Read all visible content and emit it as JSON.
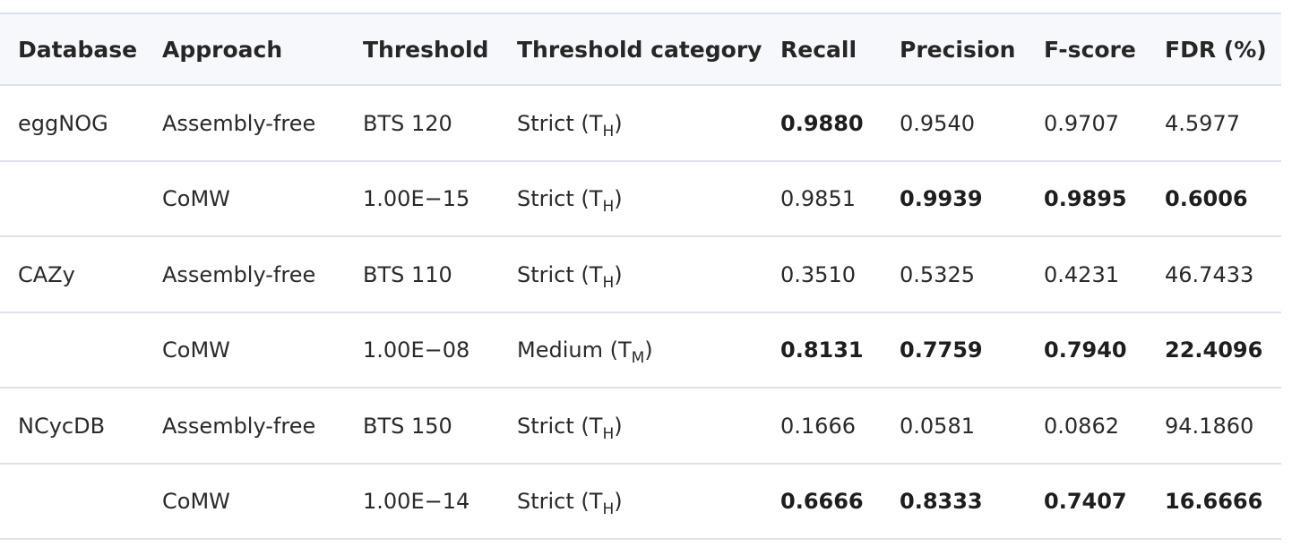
{
  "table": {
    "headers": [
      "Database",
      "Approach",
      "Threshold",
      "Threshold category",
      "Recall",
      "Precision",
      "F-score",
      "FDR (%)"
    ],
    "rows": [
      {
        "database": "eggNOG",
        "approach": "Assembly-free",
        "threshold": "BTS 120",
        "category": "Strict (T",
        "category_sub": "H",
        "category_close": ")",
        "recall": "0.9880",
        "precision": "0.9540",
        "fscore": "0.9707",
        "fdr": "4.5977",
        "bold": [
          "recall"
        ]
      },
      {
        "database": "",
        "approach": "CoMW",
        "threshold": "1.00E−15",
        "category": "Strict (T",
        "category_sub": "H",
        "category_close": ")",
        "recall": "0.9851",
        "precision": "0.9939",
        "fscore": "0.9895",
        "fdr": "0.6006",
        "bold": [
          "precision",
          "fscore",
          "fdr"
        ]
      },
      {
        "database": "CAZy",
        "approach": "Assembly-free",
        "threshold": "BTS 110",
        "category": "Strict (T",
        "category_sub": "H",
        "category_close": ")",
        "recall": "0.3510",
        "precision": "0.5325",
        "fscore": "0.4231",
        "fdr": "46.7433",
        "bold": []
      },
      {
        "database": "",
        "approach": "CoMW",
        "threshold": "1.00E−08",
        "category": "Medium (T",
        "category_sub": "M",
        "category_close": ")",
        "recall": "0.8131",
        "precision": "0.7759",
        "fscore": "0.7940",
        "fdr": "22.4096",
        "bold": [
          "recall",
          "precision",
          "fscore",
          "fdr"
        ]
      },
      {
        "database": "NCycDB",
        "approach": "Assembly-free",
        "threshold": "BTS 150",
        "category": "Strict (T",
        "category_sub": "H",
        "category_close": ")",
        "recall": "0.1666",
        "precision": "0.0581",
        "fscore": "0.0862",
        "fdr": "94.1860",
        "bold": []
      },
      {
        "database": "",
        "approach": "CoMW",
        "threshold": "1.00E−14",
        "category": "Strict (T",
        "category_sub": "H",
        "category_close": ")",
        "recall": "0.6666",
        "precision": "0.8333",
        "fscore": "0.7407",
        "fdr": "16.6666",
        "bold": [
          "recall",
          "precision",
          "fscore",
          "fdr"
        ]
      }
    ]
  }
}
